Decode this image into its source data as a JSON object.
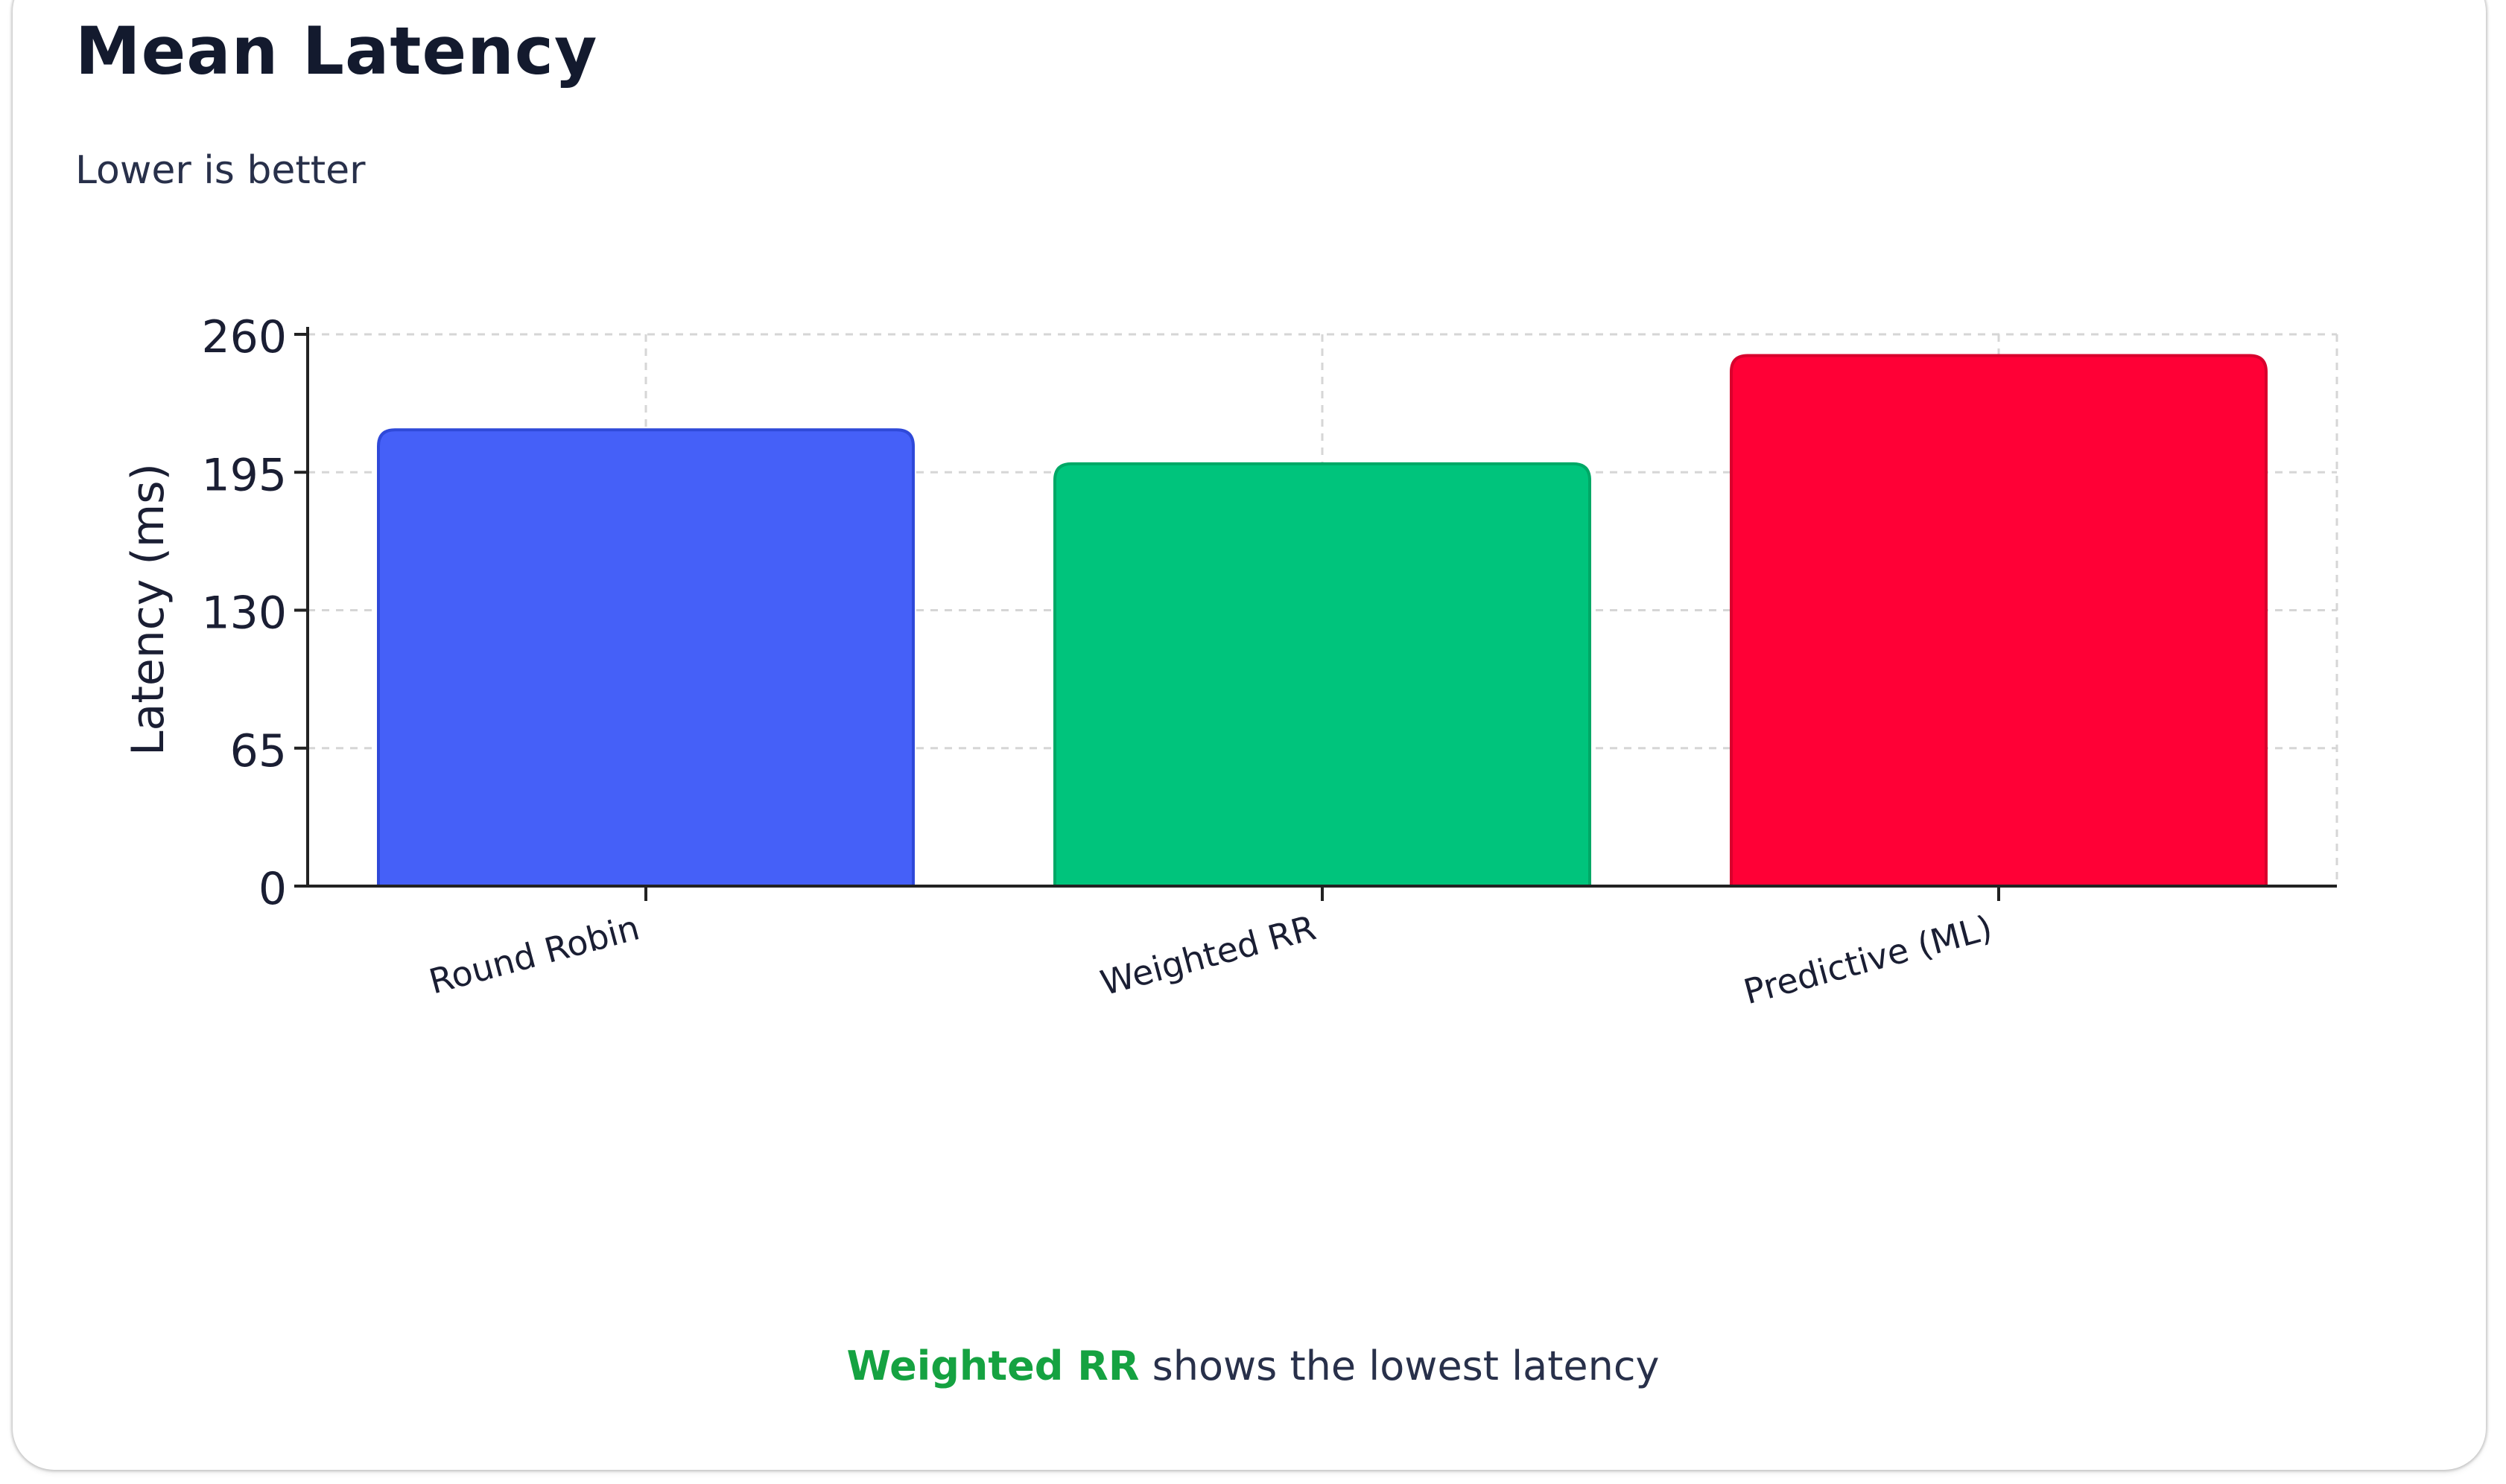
{
  "title": "Mean Latency",
  "subtitle": "Lower is better",
  "colors": {
    "card_background": "#ffffff",
    "title": "#131a2e",
    "text": "#28304a",
    "highlight": "#15a241",
    "grid": "#d6d6d6",
    "axis": "#222222"
  },
  "chart_data": {
    "type": "bar",
    "title": "",
    "xlabel": "",
    "ylabel": "Latency (ms)",
    "ylim": [
      0,
      260
    ],
    "yticks": [
      "0",
      "65",
      "130",
      "195",
      "260"
    ],
    "grid": true,
    "categories": [
      "Round Robin",
      "Weighted RR",
      "Predictive (ML)"
    ],
    "values": [
      215,
      199,
      250
    ],
    "bar_colors": [
      "#4560f8",
      "#00c47c",
      "#ff0036"
    ],
    "bar_edge_colors": [
      "#2f49d9",
      "#00a866",
      "#d8002d"
    ]
  },
  "footer": {
    "highlight": "Weighted RR",
    "text": "shows the lowest latency"
  }
}
